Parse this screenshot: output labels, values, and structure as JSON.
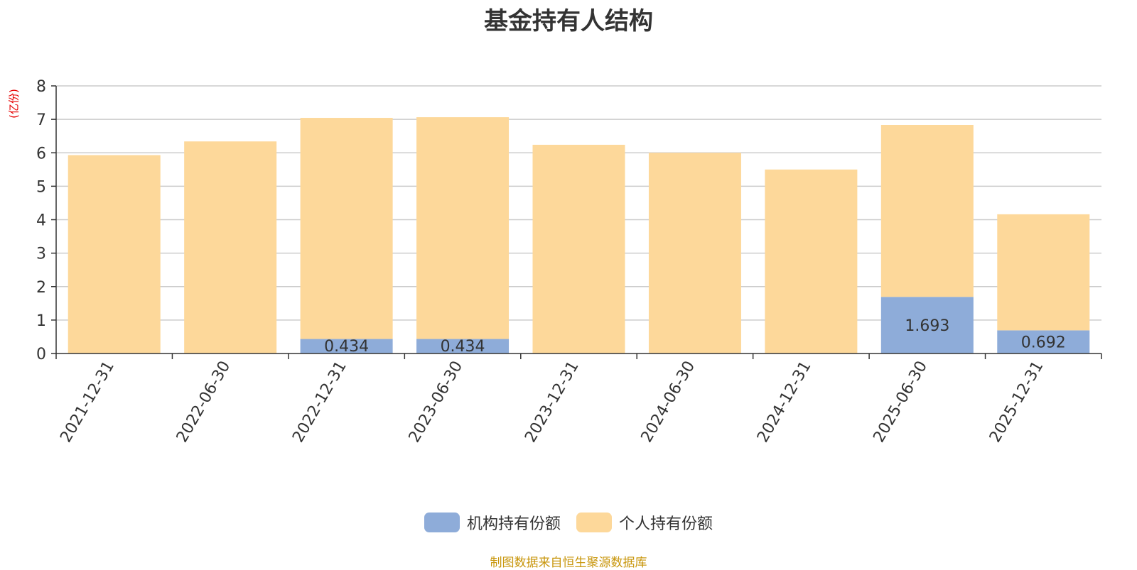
{
  "title": "基金持有人结构",
  "unit_label": "(亿份)",
  "source": "制图数据来自恒生聚源数据库",
  "colors": {
    "institutional": "#8eacd9",
    "individual": "#fdd89a",
    "grid": "#cccccc",
    "axis": "#333333",
    "text": "#333333"
  },
  "legend": [
    {
      "label": "机构持有份额",
      "color": "#8eacd9"
    },
    {
      "label": "个人持有份额",
      "color": "#fdd89a"
    }
  ],
  "chart_data": {
    "type": "bar",
    "stacked": true,
    "title": "基金持有人结构",
    "ylabel": "(亿份)",
    "xlabel": "",
    "categories": [
      "2021-12-31",
      "2022-06-30",
      "2022-12-31",
      "2023-06-30",
      "2023-12-31",
      "2024-06-30",
      "2024-12-31",
      "2025-06-30",
      "2025-12-31"
    ],
    "series": [
      {
        "name": "机构持有份额",
        "values": [
          0,
          0,
          0.434,
          0.434,
          0,
          0,
          0,
          1.693,
          0.692
        ],
        "labels": [
          "",
          "",
          "0.434",
          "0.434",
          "",
          "",
          "",
          "1.693",
          "0.692"
        ]
      },
      {
        "name": "个人持有份额",
        "values": [
          5.93,
          6.34,
          6.61,
          6.63,
          6.24,
          6.0,
          5.5,
          5.14,
          3.47
        ],
        "labels": [
          "",
          "",
          "",
          "",
          "",
          "",
          "",
          "",
          ""
        ]
      }
    ],
    "ylim": [
      0,
      8
    ],
    "yticks": [
      0,
      1,
      2,
      3,
      4,
      5,
      6,
      7,
      8
    ],
    "grid": true,
    "legend_position": "bottom"
  }
}
